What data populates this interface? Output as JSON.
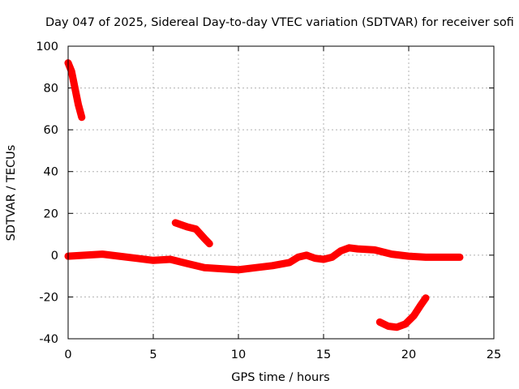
{
  "chart_data": {
    "type": "scatter",
    "title": "Day 047 of 2025, Sidereal Day-to-day VTEC variation (SDTVAR) for receiver sofi",
    "xlabel": "GPS time / hours",
    "ylabel": "SDTVAR / TECUs",
    "xlim": [
      0,
      25
    ],
    "ylim": [
      -40,
      100
    ],
    "xticks": [
      "0",
      "5",
      "10",
      "15",
      "20",
      "25"
    ],
    "yticks": [
      "-40",
      "-20",
      "0",
      "20",
      "40",
      "60",
      "80",
      "100"
    ],
    "grid": true,
    "series_color": "#ff0000",
    "series": [
      {
        "name": "main-arc",
        "points": [
          [
            0,
            -0.5
          ],
          [
            1,
            0
          ],
          [
            2,
            0.5
          ],
          [
            3,
            -0.5
          ],
          [
            4,
            -1.5
          ],
          [
            5,
            -2.5
          ],
          [
            6,
            -2
          ],
          [
            7,
            -4
          ],
          [
            8,
            -6
          ],
          [
            9,
            -6.5
          ],
          [
            10,
            -7
          ],
          [
            11,
            -6
          ],
          [
            12,
            -5
          ],
          [
            13,
            -3.5
          ],
          [
            13.5,
            -1
          ],
          [
            14,
            0
          ],
          [
            14.5,
            -1.5
          ],
          [
            15,
            -2
          ],
          [
            15.5,
            -1
          ],
          [
            16,
            2
          ],
          [
            16.5,
            3.5
          ],
          [
            17,
            3
          ],
          [
            18,
            2.5
          ],
          [
            19,
            0.5
          ],
          [
            20,
            -0.5
          ],
          [
            21,
            -1
          ],
          [
            22,
            -1
          ],
          [
            23,
            -1
          ]
        ]
      },
      {
        "name": "arc-early",
        "points": [
          [
            0,
            92
          ],
          [
            0.2,
            88
          ],
          [
            0.4,
            80
          ],
          [
            0.6,
            72
          ],
          [
            0.8,
            66
          ]
        ]
      },
      {
        "name": "arc-mid",
        "points": [
          [
            6.3,
            15.5
          ],
          [
            7,
            13.5
          ],
          [
            7.5,
            12.5
          ],
          [
            8,
            8
          ],
          [
            8.3,
            5.5
          ]
        ]
      },
      {
        "name": "arc-late",
        "points": [
          [
            18.3,
            -32
          ],
          [
            18.8,
            -34
          ],
          [
            19.3,
            -34.5
          ],
          [
            19.8,
            -33
          ],
          [
            20.3,
            -29
          ],
          [
            20.7,
            -24
          ],
          [
            21,
            -20.5
          ]
        ]
      }
    ]
  }
}
